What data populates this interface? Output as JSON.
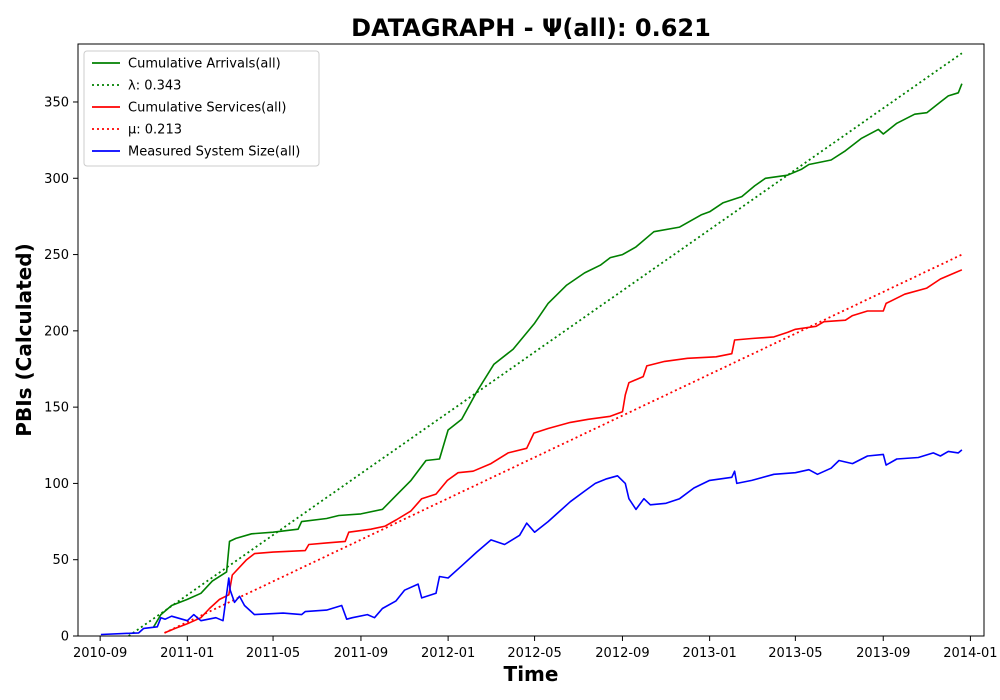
{
  "chart_data": {
    "type": "line",
    "title": "DATAGRAPH -  Ψ(all): 0.621",
    "xlabel": "Time",
    "ylabel": "PBIs (Calculated)",
    "x_ticks": [
      "2010-09",
      "2011-01",
      "2011-05",
      "2011-09",
      "2012-01",
      "2012-05",
      "2012-09",
      "2013-01",
      "2013-05",
      "2013-09",
      "2014-01"
    ],
    "xlim": [
      "2010-08-01",
      "2014-01-20"
    ],
    "y_ticks": [
      0,
      50,
      100,
      150,
      200,
      250,
      300,
      350
    ],
    "ylim": [
      0,
      388
    ],
    "grid": false,
    "legend_position": "top-left",
    "series": [
      {
        "name": "Cumulative Arrivals(all)",
        "color": "#008000",
        "style": "solid",
        "points": [
          [
            "2010-11-15",
            6
          ],
          [
            "2010-11-25",
            14
          ],
          [
            "2010-12-10",
            20
          ],
          [
            "2011-01-01",
            24
          ],
          [
            "2011-01-20",
            28
          ],
          [
            "2011-02-05",
            36
          ],
          [
            "2011-02-25",
            42
          ],
          [
            "2011-03-01",
            62
          ],
          [
            "2011-03-10",
            64
          ],
          [
            "2011-04-01",
            67
          ],
          [
            "2011-05-01",
            68
          ],
          [
            "2011-06-05",
            70
          ],
          [
            "2011-06-10",
            75
          ],
          [
            "2011-07-15",
            77
          ],
          [
            "2011-08-01",
            79
          ],
          [
            "2011-09-01",
            80
          ],
          [
            "2011-10-01",
            83
          ],
          [
            "2011-10-20",
            92
          ],
          [
            "2011-11-10",
            102
          ],
          [
            "2011-12-01",
            115
          ],
          [
            "2011-12-20",
            116
          ],
          [
            "2012-01-01",
            135
          ],
          [
            "2012-01-20",
            142
          ],
          [
            "2012-02-10",
            160
          ],
          [
            "2012-03-05",
            178
          ],
          [
            "2012-04-01",
            188
          ],
          [
            "2012-05-01",
            205
          ],
          [
            "2012-05-20",
            218
          ],
          [
            "2012-06-15",
            230
          ],
          [
            "2012-07-10",
            238
          ],
          [
            "2012-08-01",
            243
          ],
          [
            "2012-08-15",
            248
          ],
          [
            "2012-09-01",
            250
          ],
          [
            "2012-09-20",
            255
          ],
          [
            "2012-10-15",
            265
          ],
          [
            "2012-11-20",
            268
          ],
          [
            "2012-12-20",
            276
          ],
          [
            "2013-01-01",
            278
          ],
          [
            "2013-01-20",
            284
          ],
          [
            "2013-02-15",
            288
          ],
          [
            "2013-03-05",
            295
          ],
          [
            "2013-03-20",
            300
          ],
          [
            "2013-04-20",
            302
          ],
          [
            "2013-05-10",
            306
          ],
          [
            "2013-05-20",
            309
          ],
          [
            "2013-06-20",
            312
          ],
          [
            "2013-07-10",
            318
          ],
          [
            "2013-08-01",
            326
          ],
          [
            "2013-08-25",
            332
          ],
          [
            "2013-09-01",
            329
          ],
          [
            "2013-09-20",
            336
          ],
          [
            "2013-10-15",
            342
          ],
          [
            "2013-11-01",
            343
          ],
          [
            "2013-11-20",
            350
          ],
          [
            "2013-12-01",
            354
          ],
          [
            "2013-12-15",
            356
          ],
          [
            "2013-12-20",
            362
          ]
        ]
      },
      {
        "name": "λ: 0.343",
        "color": "#008000",
        "style": "dotted",
        "points": [
          [
            "2010-10-11",
            0
          ],
          [
            "2013-12-20",
            382
          ]
        ]
      },
      {
        "name": "Cumulative Services(all)",
        "color": "#ff0000",
        "style": "solid",
        "points": [
          [
            "2010-11-30",
            2
          ],
          [
            "2010-12-15",
            5
          ],
          [
            "2011-01-01",
            8
          ],
          [
            "2011-01-20",
            12
          ],
          [
            "2011-02-01",
            18
          ],
          [
            "2011-02-15",
            24
          ],
          [
            "2011-02-28",
            27
          ],
          [
            "2011-03-05",
            40
          ],
          [
            "2011-03-25",
            50
          ],
          [
            "2011-04-05",
            54
          ],
          [
            "2011-05-01",
            55
          ],
          [
            "2011-06-15",
            56
          ],
          [
            "2011-06-20",
            60
          ],
          [
            "2011-07-15",
            61
          ],
          [
            "2011-08-10",
            62
          ],
          [
            "2011-08-15",
            68
          ],
          [
            "2011-09-15",
            70
          ],
          [
            "2011-10-05",
            72
          ],
          [
            "2011-10-20",
            76
          ],
          [
            "2011-11-10",
            82
          ],
          [
            "2011-11-25",
            90
          ],
          [
            "2011-12-15",
            93
          ],
          [
            "2011-12-31",
            102
          ],
          [
            "2012-01-15",
            107
          ],
          [
            "2012-02-05",
            108
          ],
          [
            "2012-03-01",
            113
          ],
          [
            "2012-03-25",
            120
          ],
          [
            "2012-04-20",
            123
          ],
          [
            "2012-04-30",
            133
          ],
          [
            "2012-05-20",
            136
          ],
          [
            "2012-06-20",
            140
          ],
          [
            "2012-07-15",
            142
          ],
          [
            "2012-08-15",
            144
          ],
          [
            "2012-09-01",
            147
          ],
          [
            "2012-09-05",
            158
          ],
          [
            "2012-09-10",
            166
          ],
          [
            "2012-09-30",
            170
          ],
          [
            "2012-10-05",
            177
          ],
          [
            "2012-10-30",
            180
          ],
          [
            "2012-12-01",
            182
          ],
          [
            "2013-01-10",
            183
          ],
          [
            "2013-02-01",
            185
          ],
          [
            "2013-02-05",
            194
          ],
          [
            "2013-03-01",
            195
          ],
          [
            "2013-04-01",
            196
          ],
          [
            "2013-04-20",
            199
          ],
          [
            "2013-05-01",
            201
          ],
          [
            "2013-05-30",
            203
          ],
          [
            "2013-06-10",
            206
          ],
          [
            "2013-07-10",
            207
          ],
          [
            "2013-07-20",
            210
          ],
          [
            "2013-08-10",
            213
          ],
          [
            "2013-09-01",
            213
          ],
          [
            "2013-09-05",
            218
          ],
          [
            "2013-10-01",
            224
          ],
          [
            "2013-11-01",
            228
          ],
          [
            "2013-11-20",
            234
          ],
          [
            "2013-12-10",
            238
          ],
          [
            "2013-12-20",
            240
          ]
        ]
      },
      {
        "name": "μ: 0.213",
        "color": "#ff0000",
        "style": "dotted",
        "points": [
          [
            "2010-11-30",
            2
          ],
          [
            "2013-12-20",
            250
          ]
        ]
      },
      {
        "name": "Measured System Size(all)",
        "color": "#0000ff",
        "style": "solid",
        "points": [
          [
            "2010-09-02",
            1
          ],
          [
            "2010-10-25",
            2
          ],
          [
            "2010-11-01",
            5
          ],
          [
            "2010-11-20",
            6
          ],
          [
            "2010-11-25",
            12
          ],
          [
            "2010-12-01",
            11
          ],
          [
            "2010-12-10",
            13
          ],
          [
            "2011-01-01",
            10
          ],
          [
            "2011-01-10",
            14
          ],
          [
            "2011-01-20",
            10
          ],
          [
            "2011-02-10",
            12
          ],
          [
            "2011-02-20",
            10
          ],
          [
            "2011-02-28",
            38
          ],
          [
            "2011-03-02",
            30
          ],
          [
            "2011-03-08",
            22
          ],
          [
            "2011-03-15",
            26
          ],
          [
            "2011-03-22",
            20
          ],
          [
            "2011-04-05",
            14
          ],
          [
            "2011-05-15",
            15
          ],
          [
            "2011-06-10",
            14
          ],
          [
            "2011-06-15",
            16
          ],
          [
            "2011-07-15",
            17
          ],
          [
            "2011-08-05",
            20
          ],
          [
            "2011-08-12",
            11
          ],
          [
            "2011-08-20",
            12
          ],
          [
            "2011-09-10",
            14
          ],
          [
            "2011-09-20",
            12
          ],
          [
            "2011-10-01",
            18
          ],
          [
            "2011-10-20",
            23
          ],
          [
            "2011-11-01",
            30
          ],
          [
            "2011-11-20",
            34
          ],
          [
            "2011-11-25",
            25
          ],
          [
            "2011-12-15",
            28
          ],
          [
            "2011-12-20",
            39
          ],
          [
            "2012-01-01",
            38
          ],
          [
            "2012-01-20",
            46
          ],
          [
            "2012-02-10",
            55
          ],
          [
            "2012-03-01",
            63
          ],
          [
            "2012-03-20",
            60
          ],
          [
            "2012-04-10",
            66
          ],
          [
            "2012-04-20",
            74
          ],
          [
            "2012-05-01",
            68
          ],
          [
            "2012-05-20",
            75
          ],
          [
            "2012-06-01",
            80
          ],
          [
            "2012-06-20",
            88
          ],
          [
            "2012-07-10",
            95
          ],
          [
            "2012-07-25",
            100
          ],
          [
            "2012-08-10",
            103
          ],
          [
            "2012-08-25",
            105
          ],
          [
            "2012-09-05",
            100
          ],
          [
            "2012-09-10",
            90
          ],
          [
            "2012-09-20",
            83
          ],
          [
            "2012-10-01",
            90
          ],
          [
            "2012-10-10",
            86
          ],
          [
            "2012-11-01",
            87
          ],
          [
            "2012-11-20",
            90
          ],
          [
            "2012-12-10",
            97
          ],
          [
            "2013-01-01",
            102
          ],
          [
            "2013-02-01",
            104
          ],
          [
            "2013-02-05",
            108
          ],
          [
            "2013-02-08",
            100
          ],
          [
            "2013-03-01",
            102
          ],
          [
            "2013-04-01",
            106
          ],
          [
            "2013-05-01",
            107
          ],
          [
            "2013-05-20",
            109
          ],
          [
            "2013-06-01",
            106
          ],
          [
            "2013-06-20",
            110
          ],
          [
            "2013-07-01",
            115
          ],
          [
            "2013-07-20",
            113
          ],
          [
            "2013-08-10",
            118
          ],
          [
            "2013-09-01",
            119
          ],
          [
            "2013-09-05",
            112
          ],
          [
            "2013-09-20",
            116
          ],
          [
            "2013-10-20",
            117
          ],
          [
            "2013-11-10",
            120
          ],
          [
            "2013-11-20",
            118
          ],
          [
            "2013-12-01",
            121
          ],
          [
            "2013-12-15",
            120
          ],
          [
            "2013-12-20",
            122
          ]
        ]
      }
    ]
  }
}
